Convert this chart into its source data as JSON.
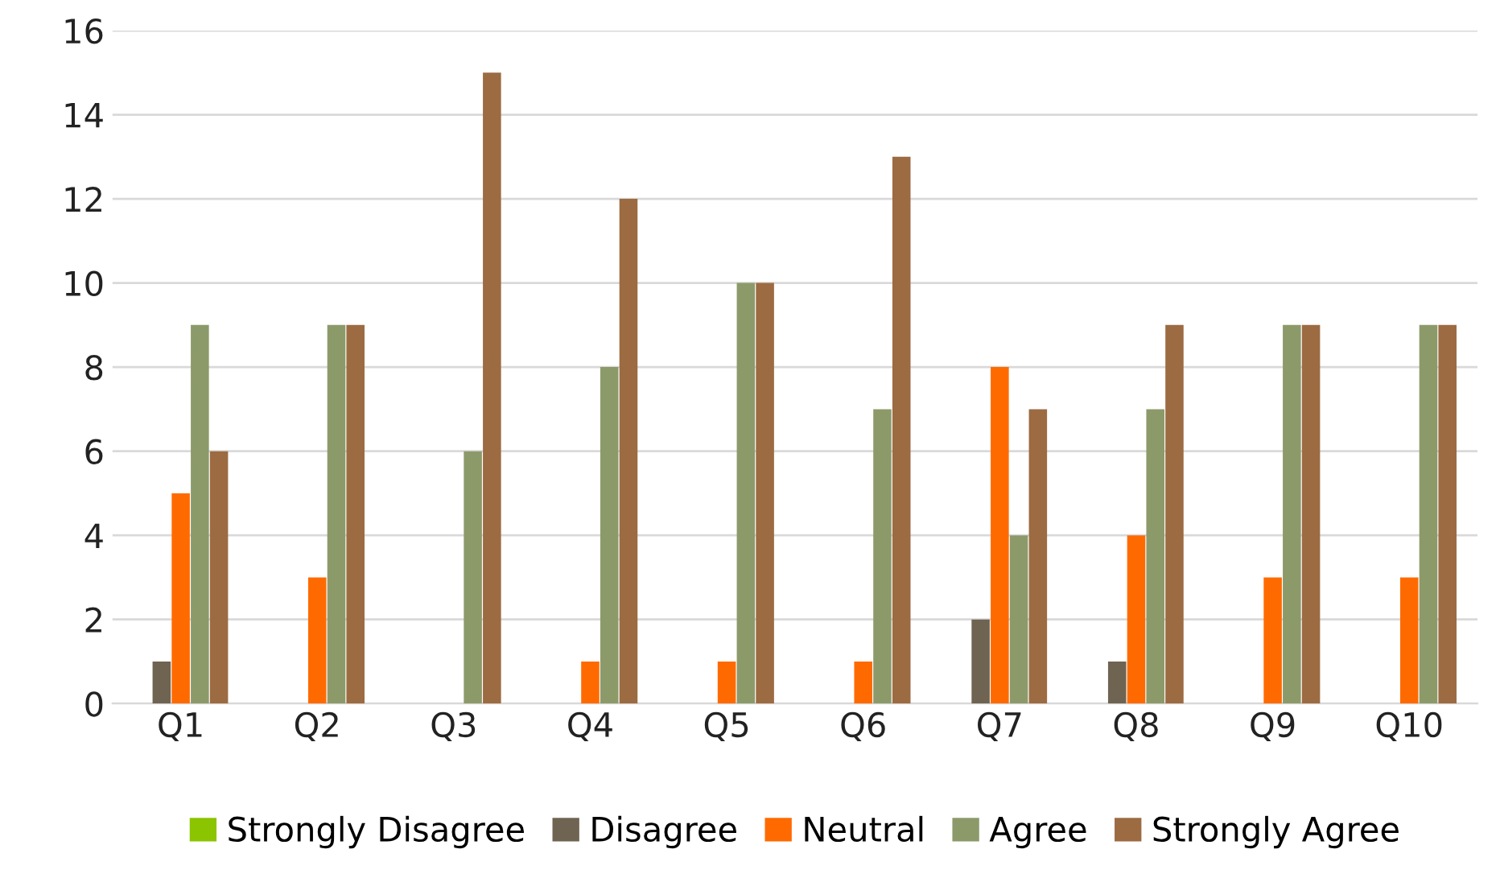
{
  "chart_data": {
    "type": "bar",
    "categories": [
      "Q1",
      "Q2",
      "Q3",
      "Q4",
      "Q5",
      "Q6",
      "Q7",
      "Q8",
      "Q9",
      "Q10"
    ],
    "series": [
      {
        "name": "Strongly Disagree",
        "color": "#8bc400",
        "values": [
          0,
          0,
          0,
          0,
          0,
          0,
          0,
          0,
          0,
          0
        ]
      },
      {
        "name": "Disagree",
        "color": "#6f6352",
        "values": [
          1,
          0,
          0,
          0,
          0,
          0,
          2,
          1,
          0,
          0
        ]
      },
      {
        "name": "Neutral",
        "color": "#ff6a00",
        "values": [
          5,
          3,
          0,
          1,
          1,
          1,
          8,
          4,
          3,
          3
        ]
      },
      {
        "name": "Agree",
        "color": "#8c9a6a",
        "values": [
          9,
          9,
          6,
          8,
          10,
          7,
          4,
          7,
          9,
          9
        ]
      },
      {
        "name": "Strongly Agree",
        "color": "#9c6b42",
        "values": [
          6,
          9,
          15,
          12,
          10,
          13,
          7,
          9,
          9,
          9
        ]
      }
    ],
    "ylim": [
      0,
      16
    ],
    "yticks": [
      0,
      2,
      4,
      6,
      8,
      10,
      12,
      14,
      16
    ],
    "grid": "y",
    "legend": "bottom"
  }
}
